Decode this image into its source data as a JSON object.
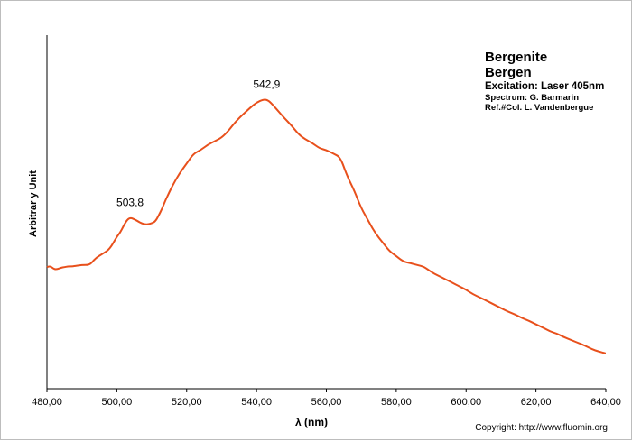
{
  "chart_data": {
    "type": "line",
    "title_lines": [
      "Bergenite",
      "Bergen"
    ],
    "excitation": "Excitation:  Laser 405nm",
    "spectrum_credit": "Spectrum: G. Barmarin",
    "reference": "Ref.#Col. L. Vandenbergue",
    "xlabel": "λ (nm)",
    "ylabel": "Arbitrar y Unit",
    "xlim": [
      480,
      640
    ],
    "ylim": [
      0,
      1
    ],
    "x_ticks": [
      480,
      500,
      520,
      540,
      560,
      580,
      600,
      620,
      640
    ],
    "x_tick_labels": [
      "480,00",
      "500,00",
      "520,00",
      "540,00",
      "560,00",
      "580,00",
      "600,00",
      "620,00",
      "640,00"
    ],
    "y_ticks_shown": false,
    "grid": false,
    "line_color": "#e8501c",
    "series": [
      {
        "x": [
          480,
          481,
          482,
          483,
          484,
          485,
          486,
          487,
          488,
          490,
          492,
          493,
          494,
          496,
          498,
          500,
          501,
          502,
          503,
          504,
          505,
          506,
          507,
          508,
          509,
          510,
          511,
          512,
          513,
          514,
          515,
          516,
          518,
          520,
          522,
          524,
          526,
          528,
          530,
          532,
          534,
          536,
          538,
          540,
          542,
          543,
          544,
          546,
          548,
          550,
          552,
          554,
          556,
          558,
          560,
          562,
          564,
          566,
          568,
          570,
          572,
          574,
          576,
          578,
          580,
          582,
          584,
          586,
          588,
          590,
          592,
          594,
          596,
          598,
          600,
          602,
          604,
          606,
          608,
          610,
          612,
          614,
          616,
          618,
          620,
          622,
          624,
          626,
          628,
          630,
          632,
          634,
          636,
          638,
          640
        ],
        "y": [
          0.344,
          0.347,
          0.338,
          0.338,
          0.342,
          0.344,
          0.346,
          0.346,
          0.347,
          0.35,
          0.35,
          0.358,
          0.37,
          0.382,
          0.395,
          0.43,
          0.442,
          0.462,
          0.478,
          0.484,
          0.479,
          0.474,
          0.468,
          0.465,
          0.465,
          0.468,
          0.473,
          0.49,
          0.51,
          0.535,
          0.555,
          0.575,
          0.61,
          0.637,
          0.665,
          0.675,
          0.69,
          0.7,
          0.71,
          0.73,
          0.755,
          0.775,
          0.793,
          0.81,
          0.818,
          0.817,
          0.81,
          0.788,
          0.765,
          0.745,
          0.72,
          0.705,
          0.695,
          0.68,
          0.675,
          0.665,
          0.655,
          0.6,
          0.56,
          0.51,
          0.475,
          0.44,
          0.415,
          0.39,
          0.375,
          0.36,
          0.355,
          0.35,
          0.345,
          0.33,
          0.32,
          0.31,
          0.3,
          0.29,
          0.28,
          0.267,
          0.258,
          0.248,
          0.238,
          0.228,
          0.218,
          0.21,
          0.2,
          0.192,
          0.182,
          0.173,
          0.162,
          0.156,
          0.146,
          0.138,
          0.13,
          0.122,
          0.112,
          0.105,
          0.1
        ]
      }
    ],
    "annotations": [
      {
        "x": 503.8,
        "y": 0.484,
        "text": "503,8"
      },
      {
        "x": 542.9,
        "y": 0.818,
        "text": "542,9"
      }
    ]
  },
  "footer": {
    "copyright": "Copyright: http://www.fluomin.org"
  }
}
